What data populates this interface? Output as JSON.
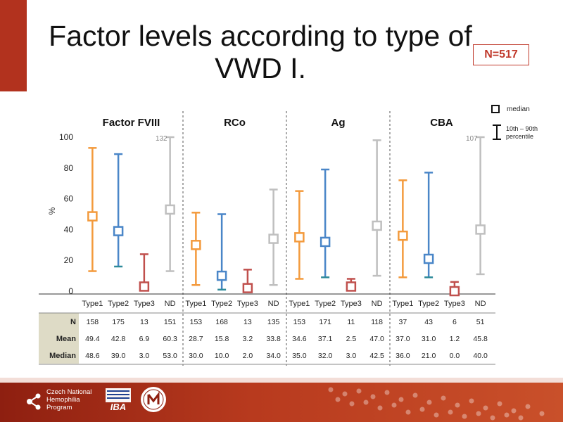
{
  "slide": {
    "title": "Factor levels according to type of VWD I.",
    "n_badge": "N=517",
    "legend_median": "median",
    "legend_percentile": "10th – 90th percentile",
    "footer_org": "Czech National Hemophilia Program",
    "footer_logo2": "IBA",
    "accent": "#b2321e"
  },
  "chart_data": {
    "type": "box",
    "ylabel": "%",
    "ylim": [
      0,
      100
    ],
    "yticks": [
      0,
      20,
      40,
      60,
      80,
      100
    ],
    "series_colors": {
      "Type1": "#f39a3c",
      "Type2": "#4a86c8",
      "Type3": "#c0504d",
      "ND": "#bfbfbf"
    },
    "whisker_cap_colors": {
      "Type1": "#f39a3c",
      "Type2": "#2e8a9a",
      "Type3": "#c0504d",
      "ND": "#bfbfbf"
    },
    "panels": [
      {
        "name": "Factor FVIII",
        "categories": [
          "Type1",
          "Type2",
          "Type3",
          "ND"
        ],
        "p10": [
          13,
          16,
          1,
          13
        ],
        "p90": [
          93,
          89,
          24,
          100
        ],
        "median": [
          48.6,
          39.0,
          3.0,
          53.0
        ],
        "overflow_label": "132",
        "N": [
          "158",
          "175",
          "13",
          "151"
        ],
        "Mean": [
          "49.4",
          "42.8",
          "6.9",
          "60.3"
        ],
        "Median": [
          "48.6",
          "39.0",
          "3.0",
          "53.0"
        ]
      },
      {
        "name": "RCo",
        "categories": [
          "Type1",
          "Type2",
          "Type3",
          "ND"
        ],
        "p10": [
          4,
          1,
          1,
          4
        ],
        "p90": [
          51,
          50,
          14,
          66
        ],
        "median": [
          30.0,
          10.0,
          2.0,
          34.0
        ],
        "overflow_label": "",
        "N": [
          "153",
          "168",
          "13",
          "135"
        ],
        "Mean": [
          "28.7",
          "15.8",
          "3.2",
          "33.8"
        ],
        "Median": [
          "30.0",
          "10.0",
          "2.0",
          "34.0"
        ]
      },
      {
        "name": "Ag",
        "categories": [
          "Type1",
          "Type2",
          "Type3",
          "ND"
        ],
        "p10": [
          8,
          9,
          2,
          10
        ],
        "p90": [
          65,
          79,
          8,
          98
        ],
        "median": [
          35.0,
          32.0,
          3.0,
          42.5
        ],
        "overflow_label": "",
        "N": [
          "153",
          "171",
          "11",
          "118"
        ],
        "Mean": [
          "34.6",
          "37.1",
          "2.5",
          "47.0"
        ],
        "Median": [
          "35.0",
          "32.0",
          "3.0",
          "42.5"
        ]
      },
      {
        "name": "CBA",
        "categories": [
          "Type1",
          "Type2",
          "Type3",
          "ND"
        ],
        "p10": [
          9,
          9,
          0,
          11
        ],
        "p90": [
          72,
          77,
          6,
          100
        ],
        "median": [
          36.0,
          21.0,
          0.0,
          40.0
        ],
        "overflow_label": "107",
        "N": [
          "37",
          "43",
          "6",
          "51"
        ],
        "Mean": [
          "37.0",
          "31.0",
          "1.2",
          "45.8"
        ],
        "Median": [
          "36.0",
          "21.0",
          "0.0",
          "40.0"
        ]
      }
    ],
    "table_rows": [
      "N",
      "Mean",
      "Median"
    ]
  }
}
